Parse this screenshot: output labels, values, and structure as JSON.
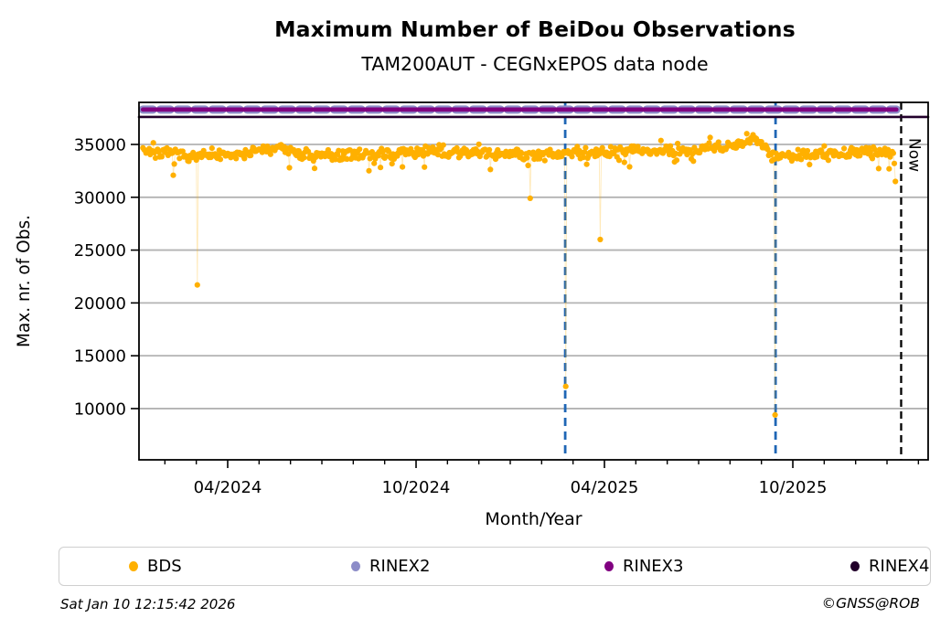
{
  "header": {
    "title": "Maximum Number of BeiDou Observations",
    "subtitle": "TAM200AUT - CEGNxEPOS data node"
  },
  "footer": {
    "timestamp": "Sat Jan 10 12:15:42 2026",
    "credit": "©GNSS@ROB"
  },
  "legend": {
    "position": "bottom",
    "items": [
      {
        "label": "BDS",
        "color": "#FFB000"
      },
      {
        "label": "RINEX2",
        "color": "#8C8CC8"
      },
      {
        "label": "RINEX3",
        "color": "#800080"
      },
      {
        "label": "RINEX4",
        "color": "#22002B"
      }
    ]
  },
  "chart_data": {
    "type": "scatter",
    "title": "Maximum Number of BeiDou Observations",
    "subtitle": "TAM200AUT - CEGNxEPOS data node",
    "xlabel": "Month/Year",
    "ylabel": "Max. nr. of Obs.",
    "grid": true,
    "month_index_origin": "2024-01",
    "xlim_months": [
      0.175,
      25.31
    ],
    "ylim": [
      5150,
      38980
    ],
    "yticks": [
      35000,
      30000,
      25000,
      20000,
      15000,
      10000
    ],
    "xticks_major": [
      {
        "month": 3,
        "label": "04/2024"
      },
      {
        "month": 9,
        "label": "10/2024"
      },
      {
        "month": 15,
        "label": "04/2025"
      },
      {
        "month": 21,
        "label": "10/2025"
      }
    ],
    "xticks_minor_months": [
      1,
      2,
      4,
      5,
      6,
      7,
      8,
      10,
      11,
      12,
      13,
      14,
      16,
      17,
      18,
      19,
      20,
      22,
      23,
      24,
      25
    ],
    "now_marker": {
      "month": 24.45,
      "label": "Now",
      "color": "#000000",
      "style": "dashed"
    },
    "event_lines": {
      "months": [
        13.75,
        20.45
      ],
      "color": "#1F66B5",
      "style": "dashed"
    },
    "series": [
      {
        "name": "BDS",
        "kind": "scatter-daily",
        "color": "#FFB000",
        "connector_color": "rgba(255,176,0,0.28)",
        "marker_radius": 3.1,
        "x_start_month": 0.3,
        "x_end_month": 24.3,
        "points_per_month": 30,
        "seed": 7,
        "band_mean_keyframes": [
          [
            0.3,
            34600
          ],
          [
            1.3,
            33950
          ],
          [
            2.6,
            33900
          ],
          [
            4.7,
            34650
          ],
          [
            5.7,
            33850
          ],
          [
            7.0,
            34050
          ],
          [
            9.6,
            34250
          ],
          [
            12.6,
            34050
          ],
          [
            14.6,
            34250
          ],
          [
            16.6,
            34400
          ],
          [
            18.7,
            34700
          ],
          [
            19.8,
            35600
          ],
          [
            20.4,
            34000
          ],
          [
            21.1,
            33900
          ],
          [
            22.6,
            34150
          ],
          [
            24.3,
            34250
          ]
        ],
        "jitter": 600,
        "value_clamp": [
          31900,
          36350
        ],
        "outliers": [
          {
            "month": 2.05,
            "value": 21700
          },
          {
            "month": 12.62,
            "value": 29900
          },
          {
            "month": 13.75,
            "value": 12100
          },
          {
            "month": 14.85,
            "value": 26000
          },
          {
            "month": 20.45,
            "value": 9400
          },
          {
            "month": 24.22,
            "value": 33200
          },
          {
            "month": 24.28,
            "value": 31500
          }
        ]
      },
      {
        "name": "RINEX2",
        "kind": "hline",
        "value": 38300,
        "color": "#8C8CC8",
        "style": "dashed",
        "width": 9,
        "x_start_month": 0.3,
        "x_end_month": 24.3
      },
      {
        "name": "RINEX3",
        "kind": "hline",
        "value": 38300,
        "color": "#800080",
        "style": "solid",
        "width": 4.6,
        "x_start_month": 0.3,
        "x_end_month": 24.3
      },
      {
        "name": "RINEX4",
        "kind": "hline",
        "value": 37600,
        "color": "#22002B",
        "style": "solid",
        "width": 2.6,
        "full_width": true
      }
    ],
    "style": {
      "grid_color": "#B3B3B3",
      "spine_color": "#000000",
      "background": "#FFFFFF"
    }
  }
}
